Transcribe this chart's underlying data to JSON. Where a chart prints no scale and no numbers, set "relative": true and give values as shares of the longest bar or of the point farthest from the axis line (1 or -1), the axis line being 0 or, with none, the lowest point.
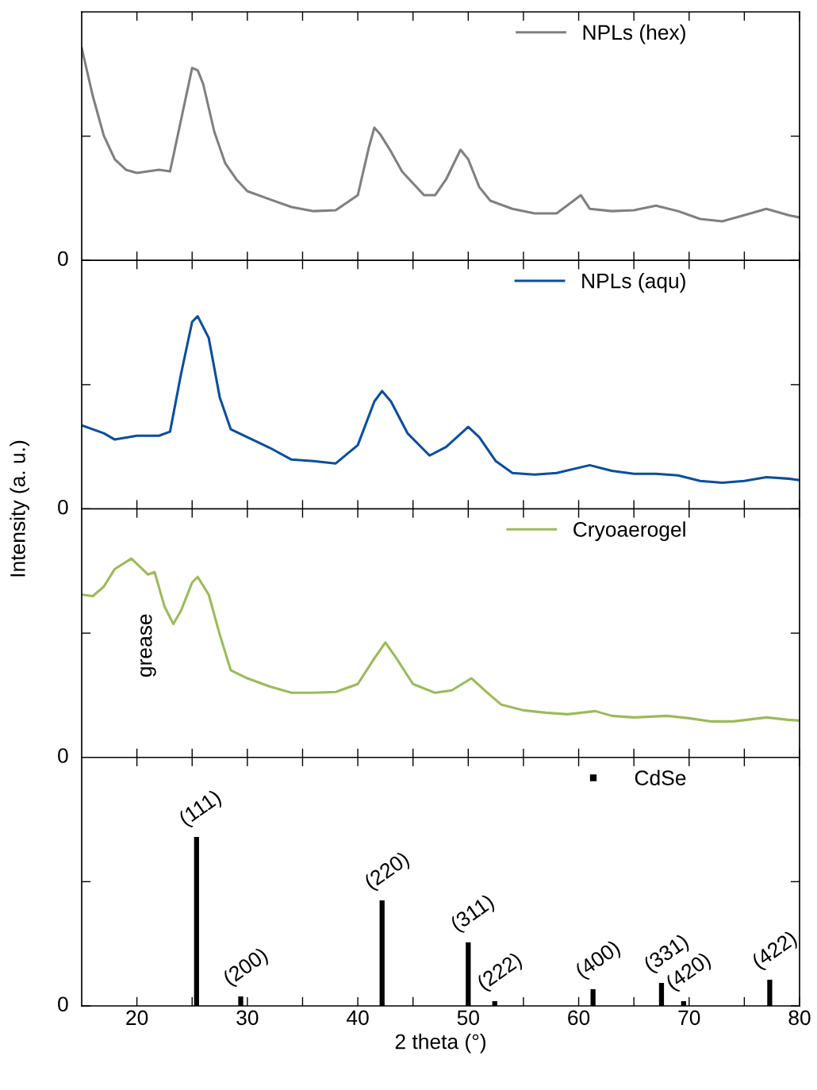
{
  "chart_data": [
    {
      "type": "line",
      "relative": true,
      "xlim": [
        15,
        80
      ],
      "xticks": [
        20,
        {
          "value": 25,
          "label": null
        },
        30,
        {
          "value": 35,
          "label": null
        },
        40,
        {
          "value": 45,
          "label": null
        },
        50,
        {
          "value": 55,
          "label": null
        },
        60,
        {
          "value": 65,
          "label": null
        },
        70,
        {
          "value": 75,
          "label": null
        },
        80
      ],
      "tick_labels": false,
      "legend": "top right",
      "annotations": [
        "0"
      ],
      "series": [
        {
          "name": "NPLs (hex)",
          "color": "#808080",
          "x": [
            15,
            16,
            17,
            18,
            19,
            20,
            21,
            22,
            23,
            24,
            25,
            25.5,
            26,
            27,
            28,
            29,
            30,
            32,
            34,
            36,
            38,
            40,
            41,
            41.5,
            42,
            43,
            44,
            46,
            47,
            48,
            49.3,
            50,
            51,
            52,
            54,
            56,
            58,
            60.2,
            61,
            63,
            65,
            67,
            69,
            71,
            73,
            75,
            77,
            79,
            80
          ],
          "values": [
            1.0,
            0.775,
            0.588,
            0.476,
            0.427,
            0.412,
            0.419,
            0.427,
            0.419,
            0.663,
            0.906,
            0.895,
            0.831,
            0.607,
            0.457,
            0.382,
            0.326,
            0.288,
            0.251,
            0.232,
            0.236,
            0.307,
            0.532,
            0.625,
            0.596,
            0.513,
            0.419,
            0.307,
            0.307,
            0.382,
            0.521,
            0.476,
            0.345,
            0.281,
            0.243,
            0.221,
            0.221,
            0.307,
            0.243,
            0.232,
            0.236,
            0.258,
            0.232,
            0.195,
            0.184,
            0.213,
            0.243,
            0.213,
            0.202
          ]
        }
      ]
    },
    {
      "type": "line",
      "relative": true,
      "xlim": [
        15,
        80
      ],
      "xticks": [
        20,
        {
          "value": 25,
          "label": null
        },
        30,
        {
          "value": 35,
          "label": null
        },
        40,
        {
          "value": 45,
          "label": null
        },
        50,
        {
          "value": 55,
          "label": null
        },
        60,
        {
          "value": 65,
          "label": null
        },
        70,
        {
          "value": 75,
          "label": null
        },
        80
      ],
      "tick_labels": false,
      "legend": "top right",
      "annotations": [
        "0"
      ],
      "ylabel": "Intensity (a. u.)",
      "series": [
        {
          "name": "NPLs (aqu)",
          "color": "#0a4f9e",
          "x": [
            15,
            17,
            18,
            20,
            22,
            23,
            24,
            25,
            25.5,
            26.5,
            27.5,
            28.5,
            30,
            32,
            34,
            36,
            38,
            40,
            41.5,
            42.2,
            43,
            44.5,
            46.5,
            48,
            50,
            51,
            52.5,
            54,
            56,
            58,
            61,
            63,
            65,
            67,
            69,
            71,
            73,
            75,
            77,
            79,
            80
          ],
          "values": [
            0.434,
            0.393,
            0.36,
            0.38,
            0.38,
            0.401,
            0.702,
            0.971,
            1.0,
            0.888,
            0.579,
            0.413,
            0.372,
            0.318,
            0.256,
            0.248,
            0.236,
            0.331,
            0.558,
            0.612,
            0.558,
            0.393,
            0.277,
            0.322,
            0.426,
            0.372,
            0.248,
            0.186,
            0.178,
            0.186,
            0.227,
            0.198,
            0.182,
            0.182,
            0.174,
            0.145,
            0.136,
            0.145,
            0.165,
            0.157,
            0.149
          ]
        }
      ]
    },
    {
      "type": "line",
      "relative": true,
      "xlim": [
        15,
        80
      ],
      "xticks": [
        20,
        {
          "value": 25,
          "label": null
        },
        30,
        {
          "value": 35,
          "label": null
        },
        40,
        {
          "value": 45,
          "label": null
        },
        50,
        {
          "value": 55,
          "label": null
        },
        60,
        {
          "value": 65,
          "label": null
        },
        70,
        {
          "value": 75,
          "label": null
        },
        80
      ],
      "tick_labels": false,
      "legend": "top right",
      "annotations": [
        "0",
        "grease"
      ],
      "series": [
        {
          "name": "Cryoaerogel",
          "color": "#9bbb59",
          "x": [
            15,
            16,
            17,
            18,
            19.5,
            21,
            21.6,
            22.5,
            23.3,
            24,
            25,
            25.5,
            26.5,
            27.5,
            28.5,
            30,
            32,
            34,
            36,
            38,
            40,
            41.5,
            42.5,
            43.5,
            45,
            47,
            48.5,
            50.3,
            51.5,
            53,
            55,
            57,
            59,
            61.5,
            63,
            65,
            68,
            70,
            72,
            74,
            77,
            79,
            80
          ],
          "values": [
            0.819,
            0.811,
            0.859,
            0.948,
            1.0,
            0.92,
            0.932,
            0.759,
            0.671,
            0.739,
            0.88,
            0.908,
            0.819,
            0.618,
            0.438,
            0.398,
            0.357,
            0.325,
            0.325,
            0.329,
            0.369,
            0.498,
            0.578,
            0.498,
            0.369,
            0.325,
            0.337,
            0.398,
            0.337,
            0.265,
            0.237,
            0.225,
            0.217,
            0.233,
            0.209,
            0.201,
            0.209,
            0.197,
            0.181,
            0.181,
            0.201,
            0.189,
            0.185
          ]
        }
      ]
    },
    {
      "type": "bar",
      "relative": true,
      "xlim": [
        15,
        80
      ],
      "xticks": [
        20,
        {
          "value": 25,
          "label": null
        },
        30,
        {
          "value": 35,
          "label": null
        },
        40,
        {
          "value": 45,
          "label": null
        },
        50,
        {
          "value": 55,
          "label": null
        },
        60,
        {
          "value": 65,
          "label": null
        },
        70,
        {
          "value": 75,
          "label": null
        },
        80
      ],
      "tick_labels": "x",
      "legend": "top right",
      "xlabel": "2 theta (°)",
      "annotations": [
        "0",
        {
          "text": "(111)",
          "x": 25.4,
          "y": 1.0
        },
        {
          "text": "(200)",
          "x": 29.4,
          "y": 0.056
        },
        {
          "text": "(220)",
          "x": 42.2,
          "y": 0.624
        },
        {
          "text": "(311)",
          "x": 50.0,
          "y": 0.376
        },
        {
          "text": "(222)",
          "x": 52.4,
          "y": 0.028
        },
        {
          "text": "(400)",
          "x": 61.3,
          "y": 0.099
        },
        {
          "text": "(331)",
          "x": 67.5,
          "y": 0.136
        },
        {
          "text": "(420)",
          "x": 69.5,
          "y": 0.028
        },
        {
          "text": "(422)",
          "x": 77.3,
          "y": 0.155
        }
      ],
      "series": [
        {
          "name": "CdSe",
          "color": "#000000",
          "x": [
            25.4,
            29.4,
            42.2,
            50.0,
            52.4,
            61.3,
            67.5,
            69.5,
            77.3
          ],
          "values": [
            1.0,
            0.056,
            0.624,
            0.376,
            0.028,
            0.099,
            0.136,
            0.028,
            0.155
          ]
        }
      ]
    }
  ]
}
